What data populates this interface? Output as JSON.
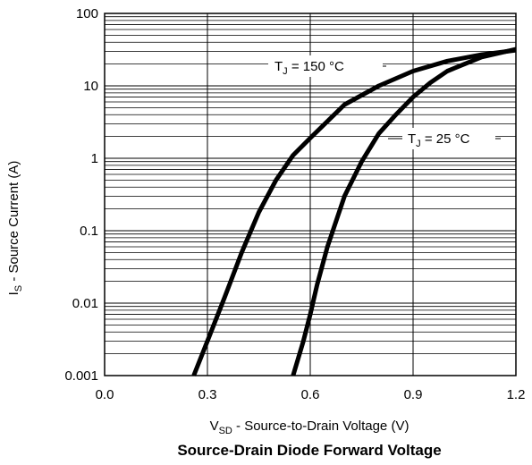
{
  "chart_data": {
    "type": "line",
    "title": "Source-Drain Diode Forward Voltage",
    "xlabel": {
      "main": "V",
      "sub": "SD",
      "rest": " - Source-to-Drain Voltage (V)"
    },
    "ylabel": {
      "main": "I",
      "sub": "S",
      "rest": " - Source Current (A)"
    },
    "xlim": [
      0.0,
      1.2
    ],
    "ylim": [
      0.001,
      100
    ],
    "yscale": "log",
    "grid": true,
    "x_ticks": [
      "0.0",
      "0.3",
      "0.6",
      "0.9",
      "1.2"
    ],
    "y_ticks": [
      "0.001",
      "0.01",
      "0.1",
      "1",
      "10",
      "100"
    ],
    "series": [
      {
        "name": "TJ = 150 °C",
        "label": {
          "main": "T",
          "sub": "J",
          "rest": " = 150 °C"
        },
        "points": [
          [
            0.26,
            0.001
          ],
          [
            0.3,
            0.003
          ],
          [
            0.35,
            0.012
          ],
          [
            0.4,
            0.05
          ],
          [
            0.45,
            0.18
          ],
          [
            0.5,
            0.5
          ],
          [
            0.55,
            1.1
          ],
          [
            0.6,
            1.9
          ],
          [
            0.7,
            5.5
          ],
          [
            0.8,
            10
          ],
          [
            0.9,
            16
          ],
          [
            1.0,
            22
          ],
          [
            1.1,
            27
          ],
          [
            1.2,
            31
          ]
        ]
      },
      {
        "name": "TJ = 25 °C",
        "label": {
          "main": "T",
          "sub": "J",
          "rest": " = 25 °C"
        },
        "points": [
          [
            0.55,
            0.001
          ],
          [
            0.58,
            0.003
          ],
          [
            0.6,
            0.007
          ],
          [
            0.62,
            0.018
          ],
          [
            0.65,
            0.06
          ],
          [
            0.7,
            0.3
          ],
          [
            0.75,
            0.9
          ],
          [
            0.8,
            2.2
          ],
          [
            0.85,
            4
          ],
          [
            0.9,
            7
          ],
          [
            0.95,
            11
          ],
          [
            1.0,
            16
          ],
          [
            1.1,
            25
          ],
          [
            1.2,
            32
          ]
        ]
      }
    ]
  }
}
